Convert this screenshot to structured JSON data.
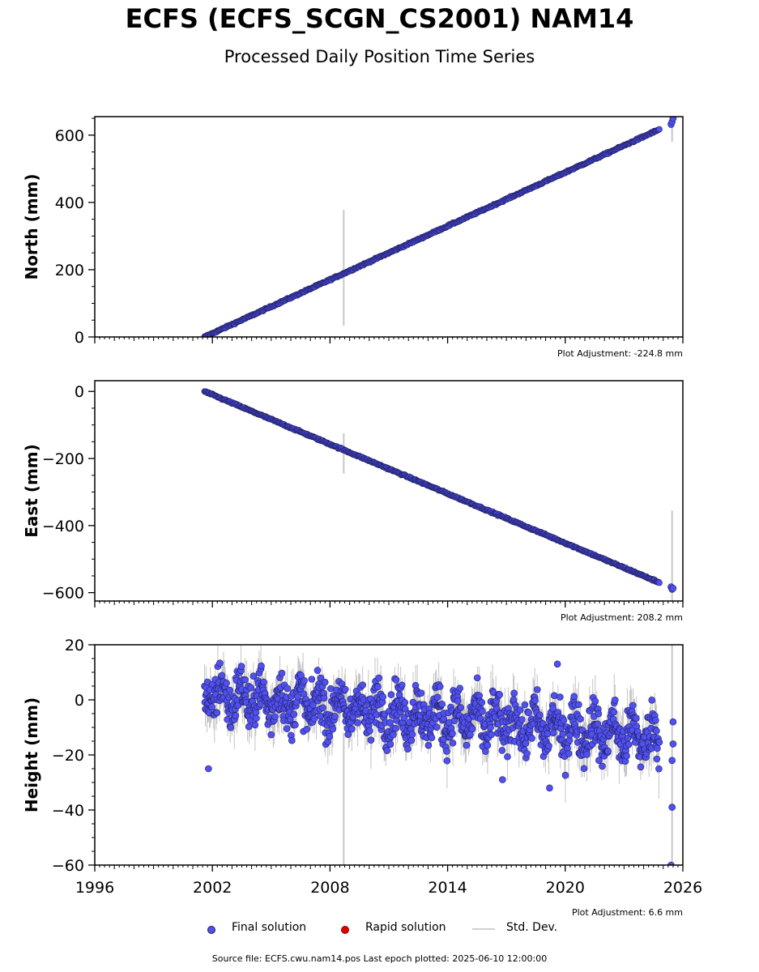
{
  "title": "ECFS (ECFS_SCGN_CS2001) NAM14",
  "subtitle": "Processed Daily Position Time Series",
  "legend": {
    "final": "Final solution",
    "rapid": "Rapid solution",
    "std": "Std. Dev."
  },
  "colors": {
    "final": "#5050f0",
    "final_edge": "#202060",
    "rapid": "#e00000",
    "std": "#c8c8c8",
    "height_band": "#555555"
  },
  "source_line": "Source file: ECFS.cwu.nam14.pos  Last epoch plotted: 2025-06-10 12:00:00",
  "chart_data": [
    {
      "type": "scatter",
      "ylabel": "North (mm)",
      "ylim": [
        0,
        655
      ],
      "yticks": [
        0,
        200,
        400,
        600
      ],
      "xlim": [
        1996,
        2026
      ],
      "xticks": [
        1996,
        2002,
        2008,
        2014,
        2020,
        2026
      ],
      "show_xtick_labels": false,
      "adjustment": "Plot Adjustment: -224.8 mm",
      "trend": {
        "x": [
          2001.6,
          2024.8
        ],
        "y": [
          0,
          617
        ]
      },
      "noise": 3,
      "outliers": [
        {
          "x": 2025.4,
          "y": 632
        },
        {
          "x": 2025.45,
          "y": 640
        },
        {
          "x": 2025.5,
          "y": 650
        }
      ],
      "errorbars": [
        {
          "x": 2008.7,
          "lo": 33,
          "hi": 378
        },
        {
          "x": 2025.45,
          "lo": 580,
          "hi": 655
        }
      ]
    },
    {
      "type": "scatter",
      "ylabel": "East (mm)",
      "ylim": [
        -625,
        32
      ],
      "yticks": [
        0,
        -200,
        -400,
        -600
      ],
      "xlim": [
        1996,
        2026
      ],
      "xticks": [
        1996,
        2002,
        2008,
        2014,
        2020,
        2026
      ],
      "show_xtick_labels": false,
      "adjustment": "Plot Adjustment: 208.2 mm",
      "trend": {
        "x": [
          2001.6,
          2024.8
        ],
        "y": [
          0,
          -570
        ]
      },
      "noise": 3,
      "outliers": [
        {
          "x": 2025.4,
          "y": -583
        },
        {
          "x": 2025.45,
          "y": -590
        },
        {
          "x": 2025.5,
          "y": -587
        }
      ],
      "errorbars": [
        {
          "x": 2008.7,
          "lo": -245,
          "hi": -125
        },
        {
          "x": 2025.45,
          "lo": -625,
          "hi": -355
        }
      ]
    },
    {
      "type": "scatter",
      "ylabel": "Height (mm)",
      "ylim": [
        -60,
        20
      ],
      "yticks": [
        20,
        0,
        -20,
        -40,
        -60
      ],
      "xlim": [
        1996,
        2026
      ],
      "xticks": [
        1996,
        2002,
        2008,
        2014,
        2020,
        2026
      ],
      "show_xtick_labels": true,
      "adjustment": "Plot Adjustment: 6.6 mm",
      "trend": {
        "x": [
          2001.6,
          2024.8
        ],
        "y": [
          2,
          -14
        ]
      },
      "noise": 5,
      "seasonal_amplitude": 5,
      "outliers": [
        {
          "x": 2001.8,
          "y": -25
        },
        {
          "x": 2019.6,
          "y": 13
        },
        {
          "x": 2016.8,
          "y": -29
        },
        {
          "x": 2019.2,
          "y": -32
        },
        {
          "x": 2025.45,
          "y": -39
        },
        {
          "x": 2025.4,
          "y": -60
        },
        {
          "x": 2025.5,
          "y": -8
        },
        {
          "x": 2025.5,
          "y": -16
        },
        {
          "x": 2025.45,
          "y": -22
        }
      ],
      "errorbars": [
        {
          "x": 2008.7,
          "lo": -60,
          "hi": -12
        },
        {
          "x": 2025.45,
          "lo": -60,
          "hi": 20
        }
      ]
    }
  ]
}
